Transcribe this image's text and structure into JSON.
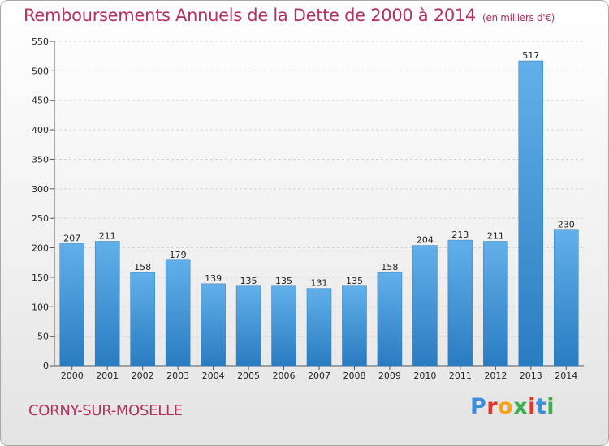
{
  "chart_data": {
    "type": "bar",
    "title": "Remboursements Annuels de la Dette de 2000 à 2014",
    "unit": "(en milliers d'€)",
    "categories": [
      "2000",
      "2001",
      "2002",
      "2003",
      "2004",
      "2005",
      "2006",
      "2007",
      "2008",
      "2009",
      "2010",
      "2011",
      "2012",
      "2013",
      "2014"
    ],
    "values": [
      207,
      211,
      158,
      179,
      139,
      135,
      135,
      131,
      135,
      158,
      204,
      213,
      211,
      517,
      230
    ],
    "ylim": [
      0,
      550
    ],
    "yticks": [
      0,
      50,
      100,
      150,
      200,
      250,
      300,
      350,
      400,
      450,
      500,
      550
    ],
    "xlabel": "",
    "ylabel": "",
    "grid": true,
    "bar_color": "#3d92d6"
  },
  "footer": {
    "place": "CORNY-SUR-MOSELLE",
    "logo_letters": [
      "P",
      "r",
      "o",
      "x",
      "i",
      "t",
      "i"
    ],
    "logo_colors": [
      "#3a8fd8",
      "#e2352b",
      "#f6a21b",
      "#3ab04a",
      "#e2352b",
      "#3a8fd8",
      "#3ab04a"
    ]
  }
}
